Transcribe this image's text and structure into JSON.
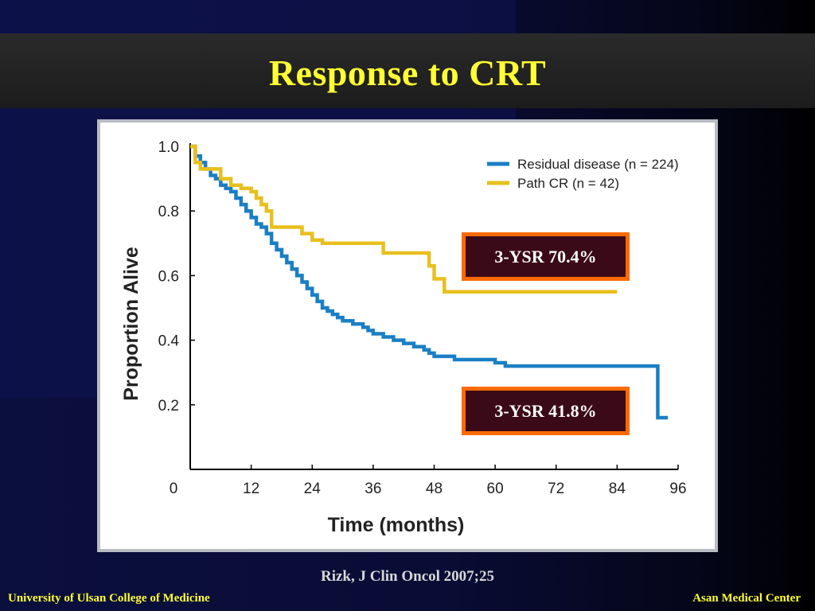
{
  "slide": {
    "title": "Response to CRT",
    "citation": "Rizk, J Clin Oncol 2007;25",
    "footer_left": "University of Ulsan College of Medicine",
    "footer_right": "Asan Medical Center"
  },
  "callouts": [
    {
      "text": "3-YSR 70.4%"
    },
    {
      "text": "3-YSR 41.8%"
    }
  ],
  "colors": {
    "title": "#ffff33",
    "residual": "#1a7fc4",
    "pathcr": "#e8bf1e",
    "callout_border": "#ff6a00",
    "callout_fill": "#3b0a18"
  },
  "chart_data": {
    "type": "line",
    "step": true,
    "title": "",
    "xlabel": "Time (months)",
    "ylabel": "Proportion Alive",
    "xlim": [
      0,
      96
    ],
    "ylim": [
      0,
      1.0
    ],
    "xticks": [
      "0",
      "12",
      "24",
      "36",
      "48",
      "60",
      "72",
      "84",
      "96"
    ],
    "yticks": [
      "0.2",
      "0.4",
      "0.6",
      "0.8",
      "1.0"
    ],
    "legend_position": "top-right",
    "series": [
      {
        "name": "Residual disease (n = 224)",
        "color": "#1a7fc4",
        "x": [
          0,
          1,
          2,
          3,
          4,
          5,
          6,
          7,
          8,
          9,
          10,
          11,
          12,
          13,
          14,
          15,
          16,
          17,
          18,
          19,
          20,
          21,
          22,
          23,
          24,
          25,
          26,
          27,
          28,
          29,
          30,
          32,
          34,
          35,
          36,
          38,
          40,
          42,
          44,
          46,
          47,
          48,
          50,
          52,
          56,
          60,
          62,
          66,
          72,
          80,
          86,
          91.5,
          92,
          94
        ],
        "y": [
          1.0,
          0.97,
          0.95,
          0.93,
          0.91,
          0.9,
          0.88,
          0.87,
          0.86,
          0.84,
          0.82,
          0.8,
          0.78,
          0.76,
          0.75,
          0.73,
          0.7,
          0.68,
          0.66,
          0.64,
          0.62,
          0.6,
          0.58,
          0.56,
          0.54,
          0.52,
          0.5,
          0.49,
          0.48,
          0.47,
          0.46,
          0.45,
          0.44,
          0.43,
          0.42,
          0.41,
          0.4,
          0.39,
          0.38,
          0.37,
          0.36,
          0.35,
          0.35,
          0.34,
          0.34,
          0.33,
          0.32,
          0.32,
          0.32,
          0.32,
          0.32,
          0.32,
          0.16,
          0.16
        ]
      },
      {
        "name": "Path CR (n = 42)",
        "color": "#e8bf1e",
        "x": [
          0,
          1,
          2,
          4,
          6,
          8,
          10,
          12,
          13,
          14,
          15,
          16,
          20,
          22,
          24,
          26,
          30,
          34,
          38,
          42,
          46,
          47,
          48,
          50,
          52,
          60,
          72,
          84
        ],
        "y": [
          1.0,
          0.95,
          0.93,
          0.93,
          0.9,
          0.88,
          0.87,
          0.86,
          0.84,
          0.82,
          0.8,
          0.75,
          0.75,
          0.73,
          0.71,
          0.7,
          0.7,
          0.7,
          0.67,
          0.67,
          0.67,
          0.63,
          0.59,
          0.55,
          0.55,
          0.55,
          0.55,
          0.55
        ]
      }
    ]
  }
}
